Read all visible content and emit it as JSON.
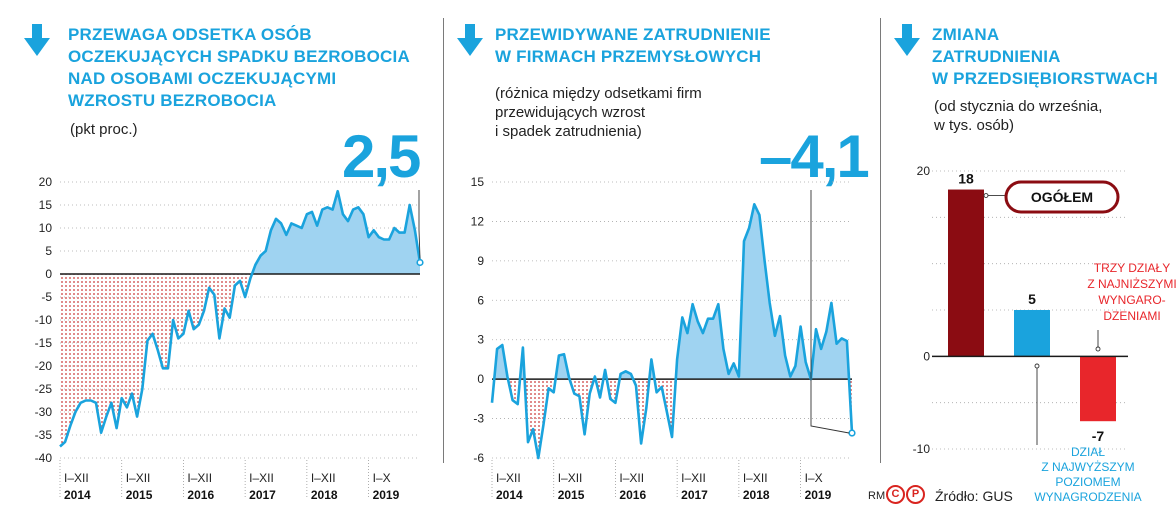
{
  "panels": {
    "left": {
      "title": [
        "PRZEWAGA ODSETKA OSÓB",
        "OCZEKUJĄCYCH SPADKU BEZROBOCIA",
        "NAD OSOBAMI OCZEKUJĄCYMI",
        "WZROSTU BEZROBOCIA"
      ],
      "unit": "(pkt proc.)",
      "highlight": "2,5"
    },
    "middle": {
      "title": [
        "PRZEWIDYWANE ZATRUDNIENIE",
        "W FIRMACH PRZEMYSŁOWYCH"
      ],
      "note": [
        "(różnica między odsetkami firm",
        "przewidujących wzrost",
        "i spadek zatrudnienia)"
      ],
      "highlight": "–4,1"
    },
    "right": {
      "title": [
        "ZMIANA",
        "ZATRUDNIENIA",
        "W PRZEDSIĘBIORSTWACH"
      ],
      "note": [
        "(od stycznia do września,",
        "w tys. osób)"
      ],
      "ogolem_label": "OGÓŁEM",
      "annot_low": [
        "TRZY DZIAŁY",
        "Z NAJNIŻSZYMI",
        "WYNGARO-",
        "DZENIAMI"
      ],
      "annot_high": [
        "DZIAŁ",
        "Z NAJWYŻSZYM",
        "POZIOMEM",
        "WYNAGRODZENIA"
      ]
    }
  },
  "footer": {
    "source": "Źródło: GUS",
    "rm": "RM",
    "cp_c": "C",
    "cp_p": "P"
  },
  "colors": {
    "accent": "#1aa3dd",
    "area_fill": "#9fd3f1",
    "negative_dots": "#c62a2a",
    "bar_dark": "#8b0c12",
    "bar_blue": "#1aa3dd",
    "bar_red": "#e8262b"
  },
  "chart_data": [
    {
      "type": "area",
      "title": "PRZEWAGA ODSETKA OSÓB OCZEKUJĄCYCH SPADKU BEZROBOCIA NAD OSOBAMI OCZEKUJĄCYMI WZROSTU BEZROBOCIA",
      "ylabel": "(pkt proc.)",
      "ylim": [
        -40,
        20
      ],
      "yticks": [
        20,
        15,
        10,
        5,
        0,
        -5,
        -10,
        -15,
        -20,
        -25,
        -30,
        -35,
        -40
      ],
      "ytick_labels": [
        "20",
        "15",
        "10",
        "5",
        "0",
        "-5",
        "-10",
        "-15",
        "-20",
        "-25",
        "-30",
        "-35",
        "-40"
      ],
      "x_range": [
        0,
        70
      ],
      "groups": [
        {
          "period": "I–XII",
          "year": "2014",
          "start": 0,
          "end": 12
        },
        {
          "period": "I–XII",
          "year": "2015",
          "start": 12,
          "end": 24
        },
        {
          "period": "I–XII",
          "year": "2016",
          "start": 24,
          "end": 36
        },
        {
          "period": "I–XII",
          "year": "2017",
          "start": 36,
          "end": 48
        },
        {
          "period": "I–XII",
          "year": "2018",
          "start": 48,
          "end": 60
        },
        {
          "period": "I–X",
          "year": "2019",
          "start": 60,
          "end": 70
        }
      ],
      "values": [
        -37.5,
        -36.5,
        -33,
        -30,
        -28,
        -27.5,
        -27.5,
        -28,
        -34.5,
        -31,
        -28,
        -33.5,
        -27,
        -29,
        -26,
        -31,
        -25,
        -14.5,
        -13,
        -16.5,
        -20.5,
        -20.5,
        -10,
        -14,
        -13,
        -8,
        -12,
        -11,
        -8,
        -3,
        -4.5,
        -14,
        -7.5,
        -9.5,
        -2.5,
        -1.5,
        -5,
        -1,
        2,
        4,
        5,
        9.5,
        12,
        11,
        8.5,
        11,
        10.5,
        10,
        13,
        13.5,
        10.5,
        14,
        14.5,
        14,
        18,
        13,
        11.5,
        14,
        14.5,
        13,
        8,
        9.5,
        8,
        7.5,
        7.5,
        10,
        9,
        9,
        15,
        9.5,
        2.5
      ],
      "last_value_label": "2,5"
    },
    {
      "type": "area",
      "title": "PRZEWIDYWANE ZATRUDNIENIE W FIRMACH PRZEMYSŁOWYCH",
      "subtitle": "(różnica między odsetkami firm przewidujących wzrost i spadek zatrudnienia)",
      "ylim": [
        -6,
        15
      ],
      "yticks": [
        15,
        12,
        9,
        6,
        3,
        0,
        -3,
        -6
      ],
      "ytick_labels": [
        "15",
        "12",
        "9",
        "6",
        "3",
        "0",
        "-3",
        "-6"
      ],
      "x_range": [
        0,
        70
      ],
      "groups": [
        {
          "period": "I–XII",
          "year": "2014",
          "start": 0,
          "end": 12
        },
        {
          "period": "I–XII",
          "year": "2015",
          "start": 12,
          "end": 24
        },
        {
          "period": "I–XII",
          "year": "2016",
          "start": 24,
          "end": 36
        },
        {
          "period": "I–XII",
          "year": "2017",
          "start": 36,
          "end": 48
        },
        {
          "period": "I–XII",
          "year": "2018",
          "start": 48,
          "end": 60
        },
        {
          "period": "I–X",
          "year": "2019",
          "start": 60,
          "end": 70
        }
      ],
      "values": [
        -1.8,
        2.3,
        2.6,
        0.2,
        -1.6,
        -1.9,
        2.4,
        -4.8,
        -3.8,
        -6,
        -3.5,
        -0.7,
        -1,
        1.8,
        1.9,
        0.1,
        -1.1,
        -1.3,
        -4.2,
        -1.1,
        0.2,
        -1.4,
        0.7,
        -1.5,
        -1.8,
        0.4,
        0.6,
        0.4,
        -0.5,
        -4.9,
        -2.2,
        1.5,
        -1,
        -0.6,
        -2.5,
        -4.4,
        1.5,
        4.7,
        3.5,
        5.7,
        4.4,
        3.5,
        4.6,
        4.6,
        5.7,
        2.3,
        0.4,
        1.2,
        0.2,
        10.5,
        11.5,
        13.3,
        12.5,
        9,
        5.8,
        3.3,
        4.8,
        1.8,
        0.2,
        1,
        4,
        1.3,
        0,
        3.8,
        2.3,
        3.6,
        5.8,
        2.7,
        3.1,
        2.9,
        -4.1
      ],
      "last_value_label": "–4,1"
    },
    {
      "type": "bar",
      "title": "ZMIANA ZATRUDNIENIA W PRZEDSIĘBIORSTWACH",
      "subtitle": "(od stycznia do września, w tys. osób)",
      "ylim": [
        -10,
        20
      ],
      "yticks": [
        20,
        0,
        -10
      ],
      "ytick_labels": [
        "20",
        "0",
        "-10"
      ],
      "categories": [
        "OGÓŁEM",
        "DZIAŁ Z NAJWYŻSZYM POZIOMEM WYNAGRODZENIA",
        "TRZY DZIAŁY Z NAJNIŻSZYMI WYNGARO-DZENIAMI"
      ],
      "values": [
        18,
        5,
        -7
      ],
      "value_labels": [
        "18",
        "5",
        "-7"
      ]
    }
  ]
}
